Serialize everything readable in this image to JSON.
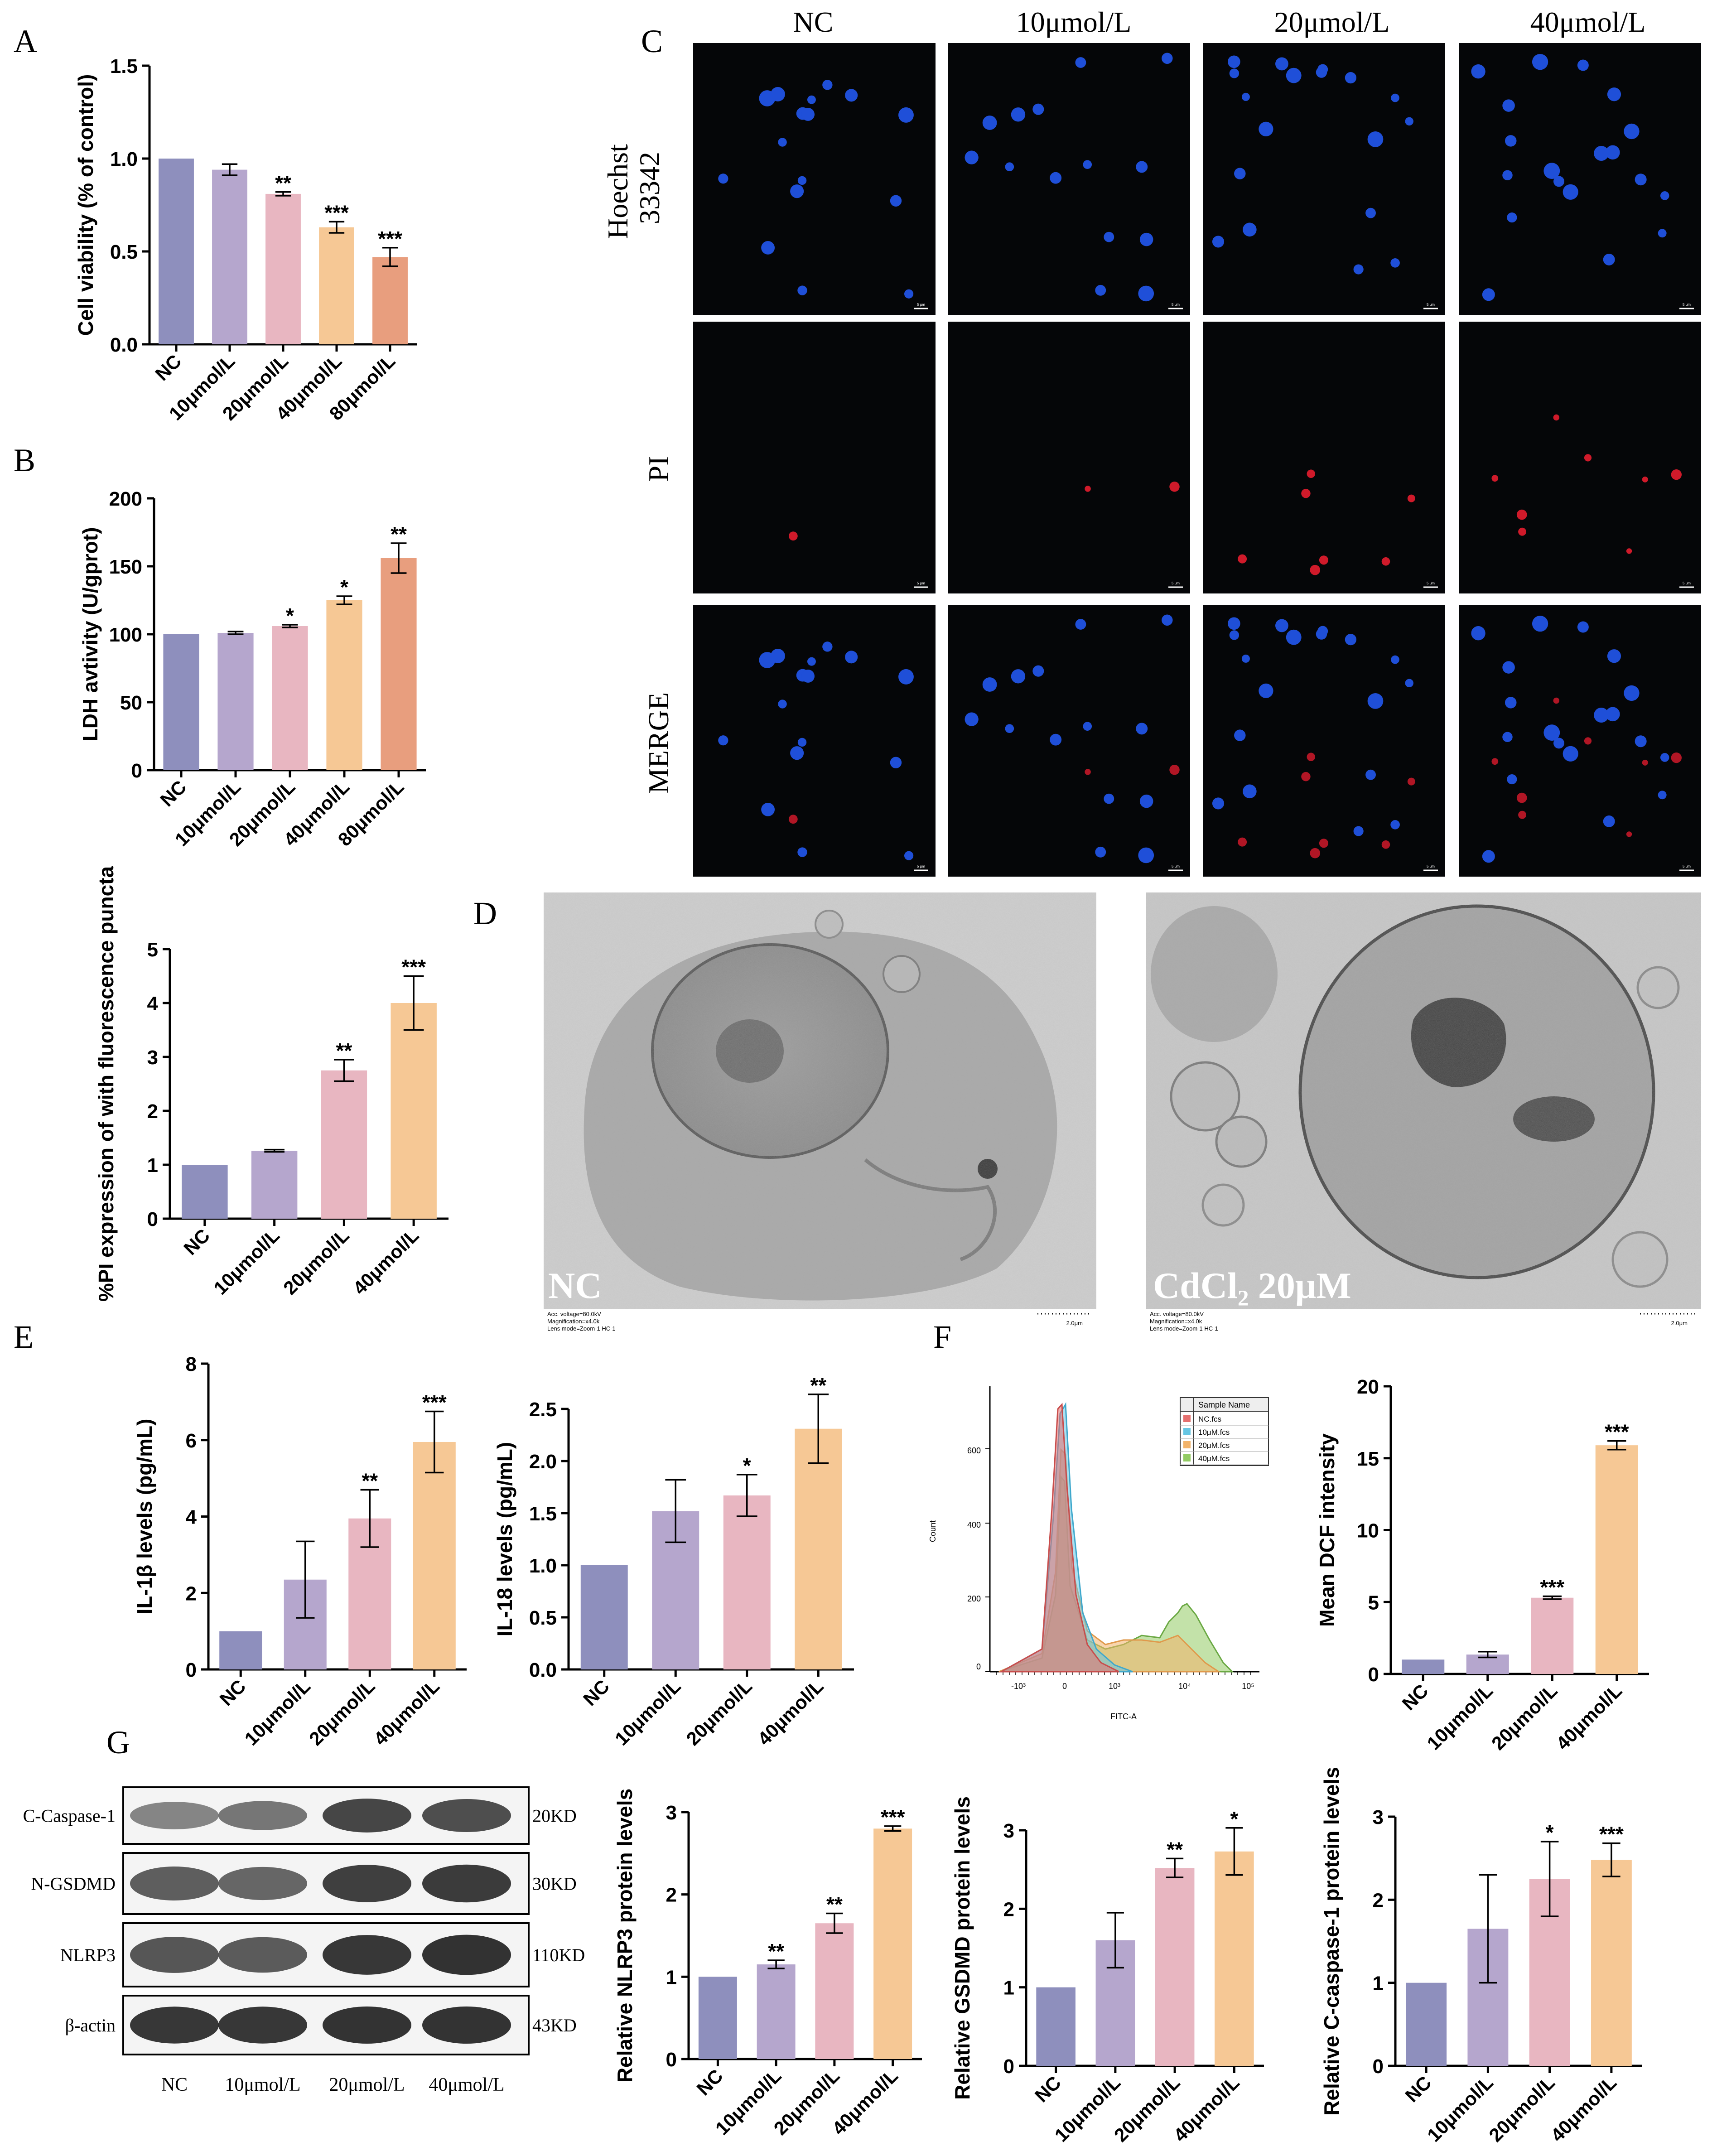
{
  "figure": {
    "panel_letters": [
      "A",
      "B",
      "C",
      "D",
      "E",
      "F",
      "G"
    ]
  },
  "colors": {
    "nc": "#8E8FBD",
    "c10": "#B5A6CD",
    "c20": "#E8B6C1",
    "c40": "#F6C895",
    "c80": "#E89E7E",
    "hoechst_nucleus": "#1F4FD8",
    "pi_nucleus": "#D01A2A"
  },
  "fluorescence": {
    "columns": [
      "NC",
      "10μmol/L",
      "20μmol/L",
      "40μmol/L"
    ],
    "rows": [
      "Hoechst\n33342",
      "PI",
      "MERGE"
    ],
    "scale_label": "5 μm"
  },
  "tem": {
    "labels": [
      "NC",
      "CdCl₂ 20μM"
    ],
    "footer_lines": [
      "Acc. voltage=80.0kV",
      "Magnification=x4.0k",
      "Lens mode=Zoom-1 HC-1"
    ],
    "scale_text": "2.0μm"
  },
  "flow": {
    "legend_title": "Sample Name",
    "legend_entries": [
      "NC.fcs",
      "10μM.fcs",
      "20μM.fcs",
      "40μM.fcs"
    ],
    "legend_colors": [
      "#E5706F",
      "#67C6E3",
      "#F2B36A",
      "#92CB63"
    ],
    "xlabel": "FITC-A",
    "ylabel": "Count",
    "yticks": [
      "0",
      "200",
      "400",
      "600"
    ],
    "xticks": [
      "-10³",
      "0",
      "10³",
      "10⁴",
      "10⁵"
    ]
  },
  "western": {
    "bands": [
      "C-Caspase-1",
      "N-GSDMD",
      "NLRP3",
      "β-actin"
    ],
    "sizes": [
      "20KD",
      "30KD",
      "110KD",
      "43KD"
    ],
    "lanes": [
      "NC",
      "10μmol/L",
      "20μmol/L",
      "40μmol/L"
    ]
  },
  "chart_data": [
    {
      "id": "A",
      "type": "bar",
      "categories": [
        "NC",
        "10μmol/L",
        "20μmol/L",
        "40μmol/L",
        "80μmol/L"
      ],
      "values": [
        1.0,
        0.94,
        0.81,
        0.63,
        0.47
      ],
      "errors": [
        0,
        0.03,
        0.01,
        0.03,
        0.05
      ],
      "sig": [
        "",
        "",
        "**",
        "***",
        "***"
      ],
      "ylabel": "Cell viability (% of control)",
      "ylim": [
        0,
        1.5
      ],
      "yticks": [
        0.0,
        0.5,
        1.0,
        1.5
      ],
      "tick_decimals": 1
    },
    {
      "id": "B",
      "type": "bar",
      "categories": [
        "NC",
        "10μmol/L",
        "20μmol/L",
        "40μmol/L",
        "80μmol/L"
      ],
      "values": [
        100,
        101,
        106,
        125,
        156
      ],
      "errors": [
        0,
        1,
        1,
        3,
        11
      ],
      "sig": [
        "",
        "",
        "*",
        "*",
        "**"
      ],
      "ylabel": "LDH avtivity (U/gprot)",
      "ylim": [
        0,
        200
      ],
      "yticks": [
        0,
        50,
        100,
        150,
        200
      ],
      "tick_decimals": 0
    },
    {
      "id": "PI",
      "type": "bar",
      "categories": [
        "NC",
        "10μmol/L",
        "20μmol/L",
        "40μmol/L"
      ],
      "values": [
        1.0,
        1.26,
        2.75,
        4.0
      ],
      "errors": [
        0,
        0.02,
        0.2,
        0.5
      ],
      "sig": [
        "",
        "",
        "**",
        "***"
      ],
      "ylabel": "%PI expression of with fluorescence puncta",
      "ylim": [
        0,
        5
      ],
      "yticks": [
        0,
        1,
        2,
        3,
        4,
        5
      ],
      "tick_decimals": 0
    },
    {
      "id": "E1",
      "type": "bar",
      "categories": [
        "NC",
        "10μmol/L",
        "20μmol/L",
        "40μmol/L"
      ],
      "values": [
        1.0,
        2.35,
        3.95,
        5.95
      ],
      "errors": [
        0,
        1.0,
        0.75,
        0.8
      ],
      "sig": [
        "",
        "",
        "**",
        "***"
      ],
      "ylabel": "IL-1β levels (pg/mL)",
      "ylim": [
        0,
        8
      ],
      "yticks": [
        0,
        2,
        4,
        6,
        8
      ],
      "tick_decimals": 0
    },
    {
      "id": "E2",
      "type": "bar",
      "categories": [
        "NC",
        "10μmol/L",
        "20μmol/L",
        "40μmol/L"
      ],
      "values": [
        1.0,
        1.52,
        1.67,
        2.31
      ],
      "errors": [
        0,
        0.3,
        0.2,
        0.33
      ],
      "sig": [
        "",
        "",
        "*",
        "**"
      ],
      "ylabel": "IL-18 levels (pg/mL)",
      "ylim": [
        0,
        2.5
      ],
      "yticks": [
        0.0,
        0.5,
        1.0,
        1.5,
        2.0,
        2.5
      ],
      "tick_decimals": 1
    },
    {
      "id": "F2",
      "type": "bar",
      "categories": [
        "NC",
        "10μmol/L",
        "20μmol/L",
        "40μmol/L"
      ],
      "values": [
        1.0,
        1.35,
        5.3,
        15.9
      ],
      "errors": [
        0,
        0.2,
        0.1,
        0.3
      ],
      "sig": [
        "",
        "",
        "***",
        "***"
      ],
      "ylabel": "Mean DCF intensity",
      "ylim": [
        0,
        20
      ],
      "yticks": [
        0,
        5,
        10,
        15,
        20
      ],
      "tick_decimals": 0
    },
    {
      "id": "G1",
      "type": "bar",
      "categories": [
        "NC",
        "10μmol/L",
        "20μmol/L",
        "40μmol/L"
      ],
      "values": [
        1.0,
        1.15,
        1.65,
        2.8
      ],
      "errors": [
        0,
        0.05,
        0.12,
        0.03
      ],
      "sig": [
        "",
        "**",
        "**",
        "***"
      ],
      "ylabel": "Relative NLRP3 protein levels",
      "ylim": [
        0,
        3
      ],
      "yticks": [
        0,
        1,
        2,
        3
      ],
      "tick_decimals": 0
    },
    {
      "id": "G2",
      "type": "bar",
      "categories": [
        "NC",
        "10μmol/L",
        "20μmol/L",
        "40μmol/L"
      ],
      "values": [
        1.0,
        1.6,
        2.52,
        2.73
      ],
      "errors": [
        0,
        0.35,
        0.12,
        0.3
      ],
      "sig": [
        "",
        "",
        "**",
        "*"
      ],
      "ylabel": "Relative GSDMD protein levels",
      "ylim": [
        0,
        3
      ],
      "yticks": [
        0,
        1,
        2,
        3
      ],
      "tick_decimals": 0
    },
    {
      "id": "G3",
      "type": "bar",
      "categories": [
        "NC",
        "10μmol/L",
        "20μmol/L",
        "40μmol/L"
      ],
      "values": [
        1.0,
        1.65,
        2.25,
        2.48
      ],
      "errors": [
        0,
        0.65,
        0.45,
        0.2
      ],
      "sig": [
        "",
        "",
        "*",
        "***"
      ],
      "ylabel": "Relative C-caspase-1 protein levels",
      "ylim": [
        0,
        3
      ],
      "yticks": [
        0,
        1,
        2,
        3
      ],
      "tick_decimals": 0
    }
  ]
}
